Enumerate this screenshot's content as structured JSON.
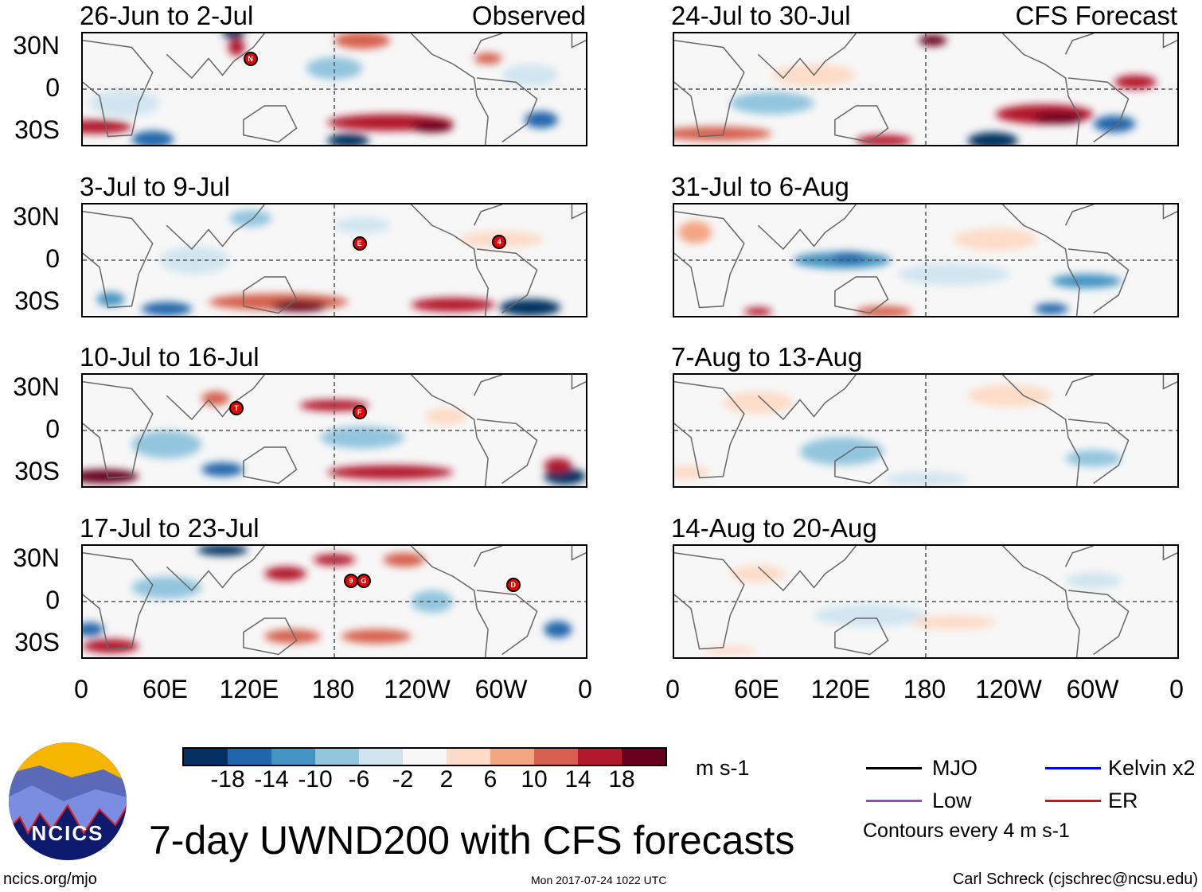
{
  "chart_data": {
    "type": "heatmap",
    "title": "7-day UWND200 with CFS forecasts",
    "units": "m s-1",
    "contour_interval_note": "Contours every 4 m s-1",
    "colorbar": {
      "ticks": [
        "-18",
        "-14",
        "-10",
        "-6",
        "-2",
        "2",
        "6",
        "10",
        "14",
        "18"
      ],
      "colors": [
        "#053061",
        "#2166ac",
        "#4393c3",
        "#92c5de",
        "#d1e5f0",
        "#f7f7f7",
        "#fddbc7",
        "#f4a582",
        "#d6604d",
        "#b2182b",
        "#67001f"
      ]
    },
    "y_ticks": [
      "30N",
      "0",
      "30S"
    ],
    "x_ticks": [
      "0",
      "60E",
      "120E",
      "180",
      "120W",
      "60W",
      "0"
    ],
    "panels": [
      {
        "title": "26-Jun to 2-Jul",
        "tag": "Observed",
        "storms": [
          "N"
        ]
      },
      {
        "title": "3-Jul to 9-Jul",
        "storms": [
          "E",
          "4"
        ]
      },
      {
        "title": "10-Jul to 16-Jul",
        "storms": [
          "T",
          "F"
        ]
      },
      {
        "title": "17-Jul to 23-Jul",
        "storms": [
          "9",
          "G",
          "D"
        ]
      },
      {
        "title": "24-Jul to 30-Jul",
        "tag": "CFS Forecast",
        "storms": []
      },
      {
        "title": "31-Jul to 6-Aug",
        "storms": []
      },
      {
        "title": "7-Aug to 13-Aug",
        "storms": []
      },
      {
        "title": "14-Aug to 20-Aug",
        "storms": []
      }
    ],
    "legend": [
      {
        "label": "MJO",
        "color": "#000000"
      },
      {
        "label": "Kelvin x2",
        "color": "#0000ff"
      },
      {
        "label": "Low",
        "color": "#a040e0"
      },
      {
        "label": "ER",
        "color": "#ff0000"
      }
    ]
  },
  "footer": {
    "logo_text": "NCICS",
    "site": "ncics.org/mjo",
    "timestamp": "Mon 2017-07-24 1022 UTC",
    "author": "Carl Schreck (cjschrec@ncsu.edu)"
  }
}
